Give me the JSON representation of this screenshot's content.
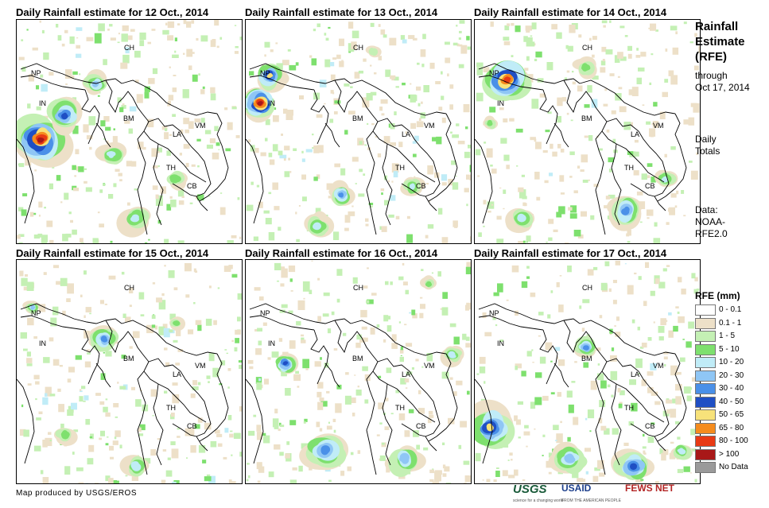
{
  "panels": [
    {
      "title": "Daily Rainfall estimate for 12 Oct., 2014"
    },
    {
      "title": "Daily Rainfall estimate for 13 Oct., 2014"
    },
    {
      "title": "Daily Rainfall estimate for 14 Oct., 2014"
    },
    {
      "title": "Daily Rainfall estimate for 15 Oct., 2014"
    },
    {
      "title": "Daily Rainfall estimate for 16 Oct., 2014"
    },
    {
      "title": "Daily Rainfall estimate for 17 Oct., 2014"
    }
  ],
  "country_labels": [
    "CH",
    "NP",
    "IN",
    "BM",
    "LA",
    "VM",
    "TH",
    "CB"
  ],
  "sidebar": {
    "heading": [
      "Rainfall",
      "Estimate",
      "(RFE)"
    ],
    "through": [
      "through",
      "Oct 17, 2014"
    ],
    "totals": [
      "Daily",
      "Totals"
    ],
    "data_source": [
      "Data:",
      "NOAA-",
      "RFE2.0"
    ]
  },
  "legend": {
    "title": "RFE (mm)",
    "items": [
      {
        "label": "0 - 0.1",
        "color": "#ffffff"
      },
      {
        "label": "0.1 - 1",
        "color": "#ede0c8"
      },
      {
        "label": "1 - 5",
        "color": "#c4f0b4"
      },
      {
        "label": "5 - 10",
        "color": "#7ee06e"
      },
      {
        "label": "10 - 20",
        "color": "#c0ecf7"
      },
      {
        "label": "20 - 30",
        "color": "#8fc6f5"
      },
      {
        "label": "30 - 40",
        "color": "#4a90e8"
      },
      {
        "label": "40 - 50",
        "color": "#1f4fc4"
      },
      {
        "label": "50 - 65",
        "color": "#f7e27a"
      },
      {
        "label": "65 - 80",
        "color": "#f58c1e"
      },
      {
        "label": "80 - 100",
        "color": "#e83a14"
      },
      {
        "label": "> 100",
        "color": "#a81818"
      },
      {
        "label": "No Data",
        "color": "#9a9a9a"
      }
    ]
  },
  "footer": {
    "credit": "Map produced by USGS/EROS"
  },
  "logos": {
    "usgs": "USGS",
    "usgs_sub": "science for a changing world",
    "usaid": "USAID",
    "usaid_sub": "FROM THE AMERICAN PEOPLE",
    "fews": "FEWS NET"
  }
}
